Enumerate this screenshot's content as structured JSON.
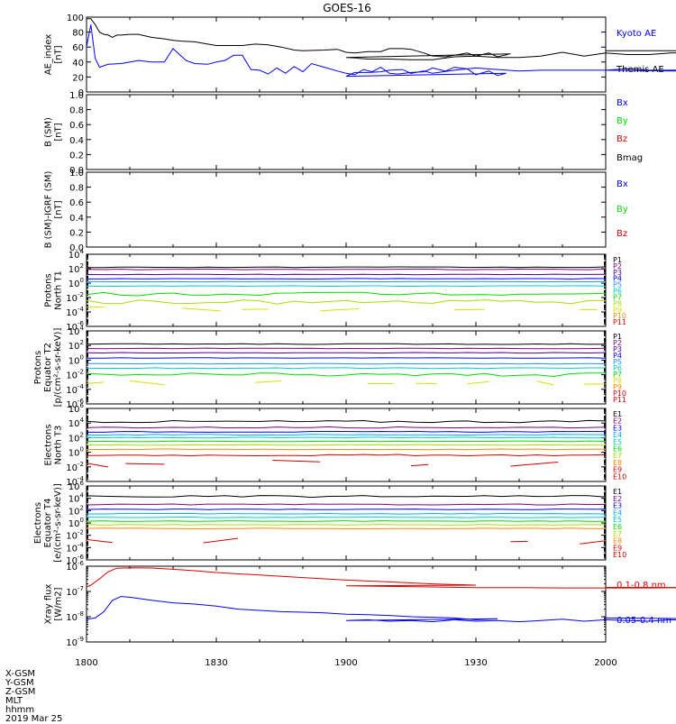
{
  "title": "GOES-16",
  "chart_data": [
    {
      "panel": "ae",
      "type": "line",
      "ylabel": [
        "AE_index",
        "[nT]"
      ],
      "ylim": [
        0,
        100
      ],
      "yticks": [
        "0",
        "20",
        "40",
        "60",
        "80",
        "100"
      ],
      "series": [
        {
          "name": "Kyoto AE",
          "color": "#0000ff",
          "x": [
            1800,
            1801,
            1802,
            1803,
            1805,
            1808,
            1812,
            1815,
            1818,
            1820,
            1823,
            1825,
            1828,
            1830,
            1832,
            1834,
            1836,
            1838,
            1840,
            1842,
            1844,
            1846,
            1848,
            1850,
            1852,
            1855,
            1858,
            1860,
            1862,
            1864,
            1866,
            1868,
            1870,
            1872,
            1875,
            1878,
            1880,
            1883,
            1885,
            1888,
            1890,
            1893,
            1895,
            1897,
            1900,
            1902,
            1905,
            1908,
            1910,
            1913,
            1915,
            1918,
            1920,
            1925,
            1930,
            1935,
            1940,
            1945,
            1950,
            1955,
            1960,
            1965,
            1970,
            1975,
            1980,
            1985,
            1990,
            1995,
            2000
          ],
          "y": [
            60,
            90,
            45,
            33,
            37,
            38,
            42,
            40,
            40,
            58,
            42,
            38,
            37,
            40,
            42,
            49,
            49,
            30,
            29,
            24,
            32,
            25,
            34,
            27,
            38,
            33,
            28,
            25,
            23,
            30,
            27,
            33,
            25,
            24,
            26,
            27,
            32,
            28,
            33,
            31,
            23,
            28,
            22,
            25,
            21,
            26,
            26,
            27,
            29,
            30,
            25,
            28,
            25,
            29,
            32,
            30,
            28,
            29,
            29,
            29,
            29,
            31,
            29,
            29,
            30,
            31,
            29,
            27,
            29
          ]
        },
        {
          "name": "Themis AE",
          "color": "#000000",
          "x": [
            1800,
            1801,
            1802,
            1803,
            1804,
            1805,
            1806,
            1807,
            1808,
            1810,
            1812,
            1815,
            1818,
            1820,
            1822,
            1825,
            1828,
            1830,
            1833,
            1836,
            1839,
            1842,
            1845,
            1848,
            1850,
            1855,
            1858,
            1860,
            1862,
            1865,
            1868,
            1870,
            1873,
            1875,
            1878,
            1880,
            1883,
            1885,
            1888,
            1890,
            1893,
            1895,
            1898,
            1900,
            1903,
            1905,
            1910,
            1915,
            1920,
            1925,
            1930,
            1935,
            1940,
            1945,
            1950,
            1955,
            1960,
            1965,
            1970,
            1975,
            1980,
            1985,
            1990,
            1995,
            2000
          ],
          "y": [
            98,
            98,
            90,
            80,
            77,
            76,
            73,
            76,
            76,
            77,
            77,
            73,
            71,
            69,
            68,
            67,
            64,
            62,
            62,
            62,
            64,
            63,
            60,
            56,
            55,
            56,
            57,
            53,
            52,
            54,
            54,
            58,
            58,
            57,
            52,
            48,
            47,
            49,
            52,
            48,
            52,
            47,
            51,
            46,
            45,
            44,
            44,
            43,
            43,
            47,
            48,
            46,
            46,
            48,
            53,
            48,
            52,
            50,
            50,
            52,
            53,
            50,
            46,
            55,
            55
          ]
        }
      ]
    },
    {
      "panel": "b_sm",
      "type": "line",
      "ylabel": [
        "B (SM)",
        "[nT]"
      ],
      "ylim": [
        0,
        1
      ],
      "yticks": [
        "0.0",
        "0.2",
        "0.4",
        "0.6",
        "0.8",
        "1.0"
      ],
      "series": [
        {
          "name": "Bx",
          "color": "#0000ff",
          "values": []
        },
        {
          "name": "By",
          "color": "#00dd00",
          "values": []
        },
        {
          "name": "Bz",
          "color": "#dd0000",
          "values": []
        },
        {
          "name": "Bmag",
          "color": "#000000",
          "values": []
        }
      ]
    },
    {
      "panel": "b_minus_igrf",
      "type": "line",
      "ylabel": [
        "B (SM)-IGRF (SM)",
        "[nT]"
      ],
      "ylim": [
        0,
        1
      ],
      "yticks": [
        "0.0",
        "0.2",
        "0.4",
        "0.6",
        "0.8",
        "1.0"
      ],
      "series": [
        {
          "name": "Bx",
          "color": "#0000ff",
          "values": []
        },
        {
          "name": "By",
          "color": "#00dd00",
          "values": []
        },
        {
          "name": "Bz",
          "color": "#dd0000",
          "values": []
        }
      ]
    },
    {
      "panel": "protons_t1",
      "type": "line",
      "yscale": "log",
      "ylabel": [
        "Protons",
        "North T1"
      ],
      "ylim_exp": [
        -6,
        4
      ],
      "ytick_exps": [
        -6,
        -4,
        -2,
        0,
        2,
        4
      ],
      "channels": [
        {
          "name": "P1",
          "color": "#000000",
          "level": 2.2,
          "jitter": 0.05
        },
        {
          "name": "P2",
          "color": "#7f007f",
          "level": 1.9,
          "jitter": 0.05
        },
        {
          "name": "P3",
          "color": "#4b0082",
          "level": 1.2,
          "jitter": 0.04
        },
        {
          "name": "P4",
          "color": "#0000ff",
          "level": 0.6,
          "jitter": 0.04
        },
        {
          "name": "P5",
          "color": "#1e90ff",
          "level": 0.2,
          "jitter": 0.03
        },
        {
          "name": "P6",
          "color": "#00cccc",
          "level": -0.4,
          "jitter": 0.05
        },
        {
          "name": "P7",
          "color": "#00dd00",
          "level": -1.5,
          "jitter": 0.25
        },
        {
          "name": "P8",
          "color": "#aadd00",
          "level": -2.6,
          "jitter": 0.3
        },
        {
          "name": "P9",
          "color": "#dddd00",
          "level": -3.6,
          "jitter": 0.3,
          "sparse": true
        },
        {
          "name": "P10",
          "color": "#ff8800",
          "level": null
        },
        {
          "name": "P11",
          "color": "#dd0000",
          "level": null
        }
      ]
    },
    {
      "panel": "protons_t2",
      "type": "line",
      "yscale": "log",
      "ylabel": [
        "Protons",
        "Equator T2",
        "[p/(cm²-s-sr-keV)]"
      ],
      "ylim_exp": [
        -6,
        4
      ],
      "ytick_exps": [
        -6,
        -4,
        -2,
        0,
        2,
        4
      ],
      "channels": [
        {
          "name": "P1",
          "color": "#000000",
          "level": 2.2,
          "jitter": 0.05
        },
        {
          "name": "P2",
          "color": "#7f007f",
          "level": 1.6,
          "jitter": 0.05
        },
        {
          "name": "P3",
          "color": "#4b0082",
          "level": 1.0,
          "jitter": 0.04
        },
        {
          "name": "P4",
          "color": "#0000ff",
          "level": 0.3,
          "jitter": 0.04
        },
        {
          "name": "P5",
          "color": "#1e90ff",
          "level": -0.5,
          "jitter": 0.04
        },
        {
          "name": "P6",
          "color": "#00cccc",
          "level": -1.1,
          "jitter": 0.05
        },
        {
          "name": "P7",
          "color": "#00dd00",
          "level": -2.0,
          "jitter": 0.25
        },
        {
          "name": "P8",
          "color": "#dddd00",
          "level": -3.1,
          "jitter": 0.3,
          "sparse": true
        },
        {
          "name": "P9",
          "color": "#ff8800",
          "level": null
        },
        {
          "name": "P10",
          "color": "#dd0000",
          "level": null
        },
        {
          "name": "P11",
          "color": "#dd0000",
          "level": null
        }
      ]
    },
    {
      "panel": "electrons_t3",
      "type": "line",
      "yscale": "log",
      "ylabel": [
        "Electrons",
        "North T3"
      ],
      "ylim_exp": [
        -4,
        6
      ],
      "ytick_exps": [
        -4,
        -2,
        0,
        2,
        4,
        6
      ],
      "channels": [
        {
          "name": "E1",
          "color": "#000000",
          "level": 4.2,
          "jitter": 0.15
        },
        {
          "name": "E2",
          "color": "#7f007f",
          "level": 3.4,
          "jitter": 0.08
        },
        {
          "name": "E3",
          "color": "#0000ff",
          "level": 2.8,
          "jitter": 0.06
        },
        {
          "name": "E4",
          "color": "#00aaff",
          "level": 2.4,
          "jitter": 0.05
        },
        {
          "name": "E5",
          "color": "#00cccc",
          "level": 2.0,
          "jitter": 0.05
        },
        {
          "name": "E6",
          "color": "#00dd00",
          "level": 1.5,
          "jitter": 0.05
        },
        {
          "name": "E7",
          "color": "#aadd00",
          "level": 1.0,
          "jitter": 0.05
        },
        {
          "name": "E8",
          "color": "#ff8800",
          "level": 0.4,
          "jitter": 0.05
        },
        {
          "name": "E9",
          "color": "#dd0000",
          "level": -0.4,
          "jitter": 0.1
        },
        {
          "name": "E10",
          "color": "#cc0000",
          "level": -1.6,
          "jitter": 0.5,
          "sparse": true
        }
      ]
    },
    {
      "panel": "electrons_t4",
      "type": "line",
      "yscale": "log",
      "ylabel": [
        "Electrons",
        "Equator T4",
        "[e/(cm²-s-sr-keV)]"
      ],
      "ylim_exp": [
        -6,
        6
      ],
      "ytick_exps": [
        -6,
        -4,
        -2,
        0,
        2,
        4,
        6
      ],
      "channels": [
        {
          "name": "E1",
          "color": "#000000",
          "level": 4.3,
          "jitter": 0.15
        },
        {
          "name": "E2",
          "color": "#7f007f",
          "level": 3.0,
          "jitter": 0.08
        },
        {
          "name": "E3",
          "color": "#0000ff",
          "level": 2.2,
          "jitter": 0.06
        },
        {
          "name": "E4",
          "color": "#00aaff",
          "level": 1.5,
          "jitter": 0.05
        },
        {
          "name": "E5",
          "color": "#00cccc",
          "level": 0.9,
          "jitter": 0.05
        },
        {
          "name": "E6",
          "color": "#00dd00",
          "level": 0.3,
          "jitter": 0.05
        },
        {
          "name": "E7",
          "color": "#aadd00",
          "level": -0.3,
          "jitter": 0.05
        },
        {
          "name": "E8",
          "color": "#ff8800",
          "level": -0.9,
          "jitter": 0.05
        },
        {
          "name": "E9",
          "color": "#dd0000",
          "level": -3.0,
          "jitter": 0.6,
          "sparse": true
        },
        {
          "name": "E10",
          "color": "#cc0000",
          "level": null
        }
      ]
    },
    {
      "panel": "xray",
      "type": "line",
      "yscale": "log",
      "ylabel": [
        "Xray flux",
        "[W/m2]"
      ],
      "ylim_exp": [
        -9,
        -6
      ],
      "ytick_exps": [
        -9,
        -8,
        -7,
        -6
      ],
      "series": [
        {
          "name": "0.1-0.8 nm",
          "color": "#dd0000",
          "x": [
            1800,
            1801,
            1803,
            1805,
            1807,
            1810,
            1815,
            1820,
            1825,
            1830,
            1840,
            1850,
            1860,
            1870,
            1880,
            1890,
            1900,
            1910,
            1920,
            1930,
            1940,
            1950,
            1960,
            1970,
            1980,
            1990,
            2000
          ],
          "y": [
            -6.82,
            -6.75,
            -6.5,
            -6.22,
            -6.08,
            -6.06,
            -6.07,
            -6.12,
            -6.18,
            -6.25,
            -6.35,
            -6.45,
            -6.55,
            -6.62,
            -6.7,
            -6.75,
            -6.78,
            -6.8,
            -6.82,
            -6.85,
            -6.85,
            -6.86,
            -6.86,
            -6.86,
            -6.85,
            -6.85,
            -6.84
          ]
        },
        {
          "name": "0.05-0.4 nm",
          "color": "#0000ff",
          "x": [
            1800,
            1802,
            1804,
            1806,
            1808,
            1810,
            1815,
            1820,
            1825,
            1830,
            1835,
            1840,
            1845,
            1850,
            1855,
            1860,
            1865,
            1870,
            1875,
            1880,
            1885,
            1890,
            1895,
            1900,
            1905,
            1910,
            1915,
            1920,
            1925,
            1930,
            1935,
            1940,
            1945,
            1950,
            1955,
            1960,
            1965,
            1970,
            1975,
            1980,
            1985,
            1990,
            1995,
            2000
          ],
          "y": [
            -8.1,
            -8.05,
            -7.8,
            -7.35,
            -7.2,
            -7.23,
            -7.35,
            -7.45,
            -7.5,
            -7.58,
            -7.7,
            -7.75,
            -7.8,
            -7.82,
            -7.85,
            -7.9,
            -7.92,
            -7.95,
            -8.0,
            -8.02,
            -8.05,
            -8.12,
            -8.08,
            -8.15,
            -8.12,
            -8.18,
            -8.15,
            -8.2,
            -8.12,
            -8.18,
            -8.15,
            -8.2,
            -8.15,
            -8.1,
            -8.18,
            -8.12,
            -8.15,
            -8.18,
            -8.12,
            -8.15,
            -8.12,
            -8.15,
            -8.1,
            -8.05
          ]
        }
      ]
    }
  ],
  "xaxis": {
    "range": [
      1800,
      2000
    ],
    "ticks": [
      1800,
      1830,
      1900,
      1930,
      2000
    ],
    "tick_labels": [
      "1800",
      "1830",
      "1900",
      "1930",
      "2000"
    ]
  },
  "footer": {
    "rows": [
      "X-GSM",
      "Y-GSM",
      "Z-GSM",
      "MLT",
      "hhmm",
      "2019 Mar 25"
    ]
  }
}
